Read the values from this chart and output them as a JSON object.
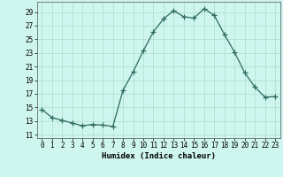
{
  "x": [
    0,
    1,
    2,
    3,
    4,
    5,
    6,
    7,
    8,
    9,
    10,
    11,
    12,
    13,
    14,
    15,
    16,
    17,
    18,
    19,
    20,
    21,
    22,
    23
  ],
  "y": [
    14.7,
    13.5,
    13.1,
    12.7,
    12.3,
    12.5,
    12.4,
    12.2,
    17.5,
    20.2,
    23.3,
    26.1,
    28.0,
    29.2,
    28.3,
    28.1,
    29.5,
    28.5,
    25.7,
    23.1,
    20.1,
    18.0,
    16.5,
    16.6
  ],
  "line_color": "#2e6b5e",
  "marker": "+",
  "marker_size": 4,
  "bg_color": "#cef5ee",
  "grid_color": "#aaddcc",
  "xlabel": "Humidex (Indice chaleur)",
  "xlim": [
    -0.5,
    23.5
  ],
  "ylim": [
    10.5,
    30.5
  ],
  "yticks": [
    11,
    13,
    15,
    17,
    19,
    21,
    23,
    25,
    27,
    29
  ],
  "xticks": [
    0,
    1,
    2,
    3,
    4,
    5,
    6,
    7,
    8,
    9,
    10,
    11,
    12,
    13,
    14,
    15,
    16,
    17,
    18,
    19,
    20,
    21,
    22,
    23
  ],
  "label_fontsize": 6.5,
  "tick_fontsize": 5.5
}
